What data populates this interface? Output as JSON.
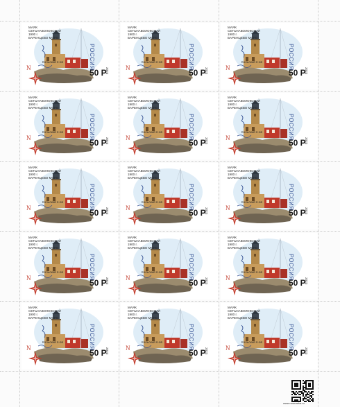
{
  "stamp": {
    "line1": "МАЯК",
    "line2": "СЕТЬНАВОЛОКСКИЙ",
    "line3": "1900 г.",
    "line4": "БАРЕНЦЕВО МОРЕ",
    "place": "Кольский п-ов",
    "country": "РОССИЯ",
    "denomination": "50 Р",
    "year": "2023",
    "compass_letter": "N"
  },
  "sheet": {
    "rows": 5,
    "cols": 3,
    "qr_url": "www.rusmarka.ru"
  },
  "colors": {
    "country_text": "#2d4a8f",
    "tower_main": "#b58a4a",
    "tower_red": "#c0392b",
    "sky": "#cfe3f3",
    "compass": "#c23a2a"
  }
}
